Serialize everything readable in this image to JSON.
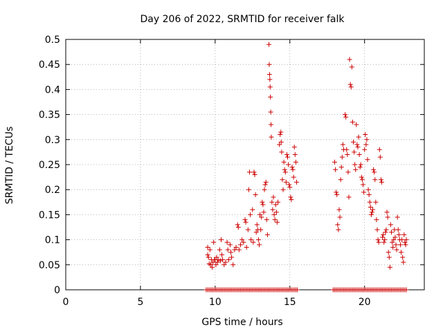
{
  "chart_data": {
    "type": "scatter",
    "title": "Day 206 of 2022, SRMTID for receiver falk",
    "xlabel": "GPS time / hours",
    "ylabel": "SRMTID / TECUs",
    "xlim": [
      0,
      24
    ],
    "ylim": [
      0,
      0.5
    ],
    "x_ticks": [
      0,
      5,
      10,
      15,
      20
    ],
    "x_tick_labels": [
      "0",
      "5",
      "10",
      "15",
      "20"
    ],
    "y_ticks": [
      0,
      0.05,
      0.1,
      0.15,
      0.2,
      0.25,
      0.3,
      0.35,
      0.4,
      0.45,
      0.5
    ],
    "y_tick_labels": [
      "0",
      "0.05",
      "0.1",
      "0.15",
      "0.2",
      "0.25",
      "0.3",
      "0.35",
      "0.4",
      "0.45",
      "0.5"
    ],
    "grid": true,
    "legend": "none",
    "marker": "+",
    "color": "#cc0000",
    "series": [
      {
        "points": [
          [
            9.5,
            0.085
          ],
          [
            9.5,
            0.07
          ],
          [
            9.55,
            0.065
          ],
          [
            9.6,
            0.052
          ],
          [
            9.65,
            0.08
          ],
          [
            9.7,
            0.05
          ],
          [
            9.75,
            0.06
          ],
          [
            9.8,
            0.045
          ],
          [
            9.85,
            0.055
          ],
          [
            9.9,
            0.095
          ],
          [
            9.95,
            0.06
          ],
          [
            10.0,
            0.06
          ],
          [
            10.05,
            0.05
          ],
          [
            10.1,
            0.065
          ],
          [
            10.15,
            0.055
          ],
          [
            10.2,
            0.06
          ],
          [
            10.3,
            0.08
          ],
          [
            10.35,
            0.058
          ],
          [
            10.4,
            0.1
          ],
          [
            10.45,
            0.07
          ],
          [
            10.5,
            0.06
          ],
          [
            10.6,
            0.05
          ],
          [
            10.7,
            0.055
          ],
          [
            10.8,
            0.095
          ],
          [
            10.85,
            0.08
          ],
          [
            10.9,
            0.06
          ],
          [
            11.0,
            0.09
          ],
          [
            11.05,
            0.075
          ],
          [
            11.1,
            0.065
          ],
          [
            11.2,
            0.05
          ],
          [
            11.3,
            0.08
          ],
          [
            11.4,
            0.085
          ],
          [
            11.5,
            0.13
          ],
          [
            11.55,
            0.125
          ],
          [
            11.6,
            0.08
          ],
          [
            11.7,
            0.09
          ],
          [
            11.8,
            0.1
          ],
          [
            11.9,
            0.095
          ],
          [
            12.0,
            0.14
          ],
          [
            12.05,
            0.135
          ],
          [
            12.1,
            0.085
          ],
          [
            12.2,
            0.12
          ],
          [
            12.25,
            0.2
          ],
          [
            12.3,
            0.235
          ],
          [
            12.35,
            0.15
          ],
          [
            12.4,
            0.1
          ],
          [
            12.5,
            0.16
          ],
          [
            12.55,
            0.095
          ],
          [
            12.6,
            0.235
          ],
          [
            12.65,
            0.23
          ],
          [
            12.7,
            0.19
          ],
          [
            12.75,
            0.115
          ],
          [
            12.8,
            0.13
          ],
          [
            12.85,
            0.12
          ],
          [
            12.9,
            0.1
          ],
          [
            12.95,
            0.09
          ],
          [
            13.0,
            0.15
          ],
          [
            13.05,
            0.12
          ],
          [
            13.1,
            0.145
          ],
          [
            13.15,
            0.175
          ],
          [
            13.2,
            0.17
          ],
          [
            13.25,
            0.155
          ],
          [
            13.3,
            0.2
          ],
          [
            13.35,
            0.21
          ],
          [
            13.4,
            0.215
          ],
          [
            13.45,
            0.14
          ],
          [
            13.5,
            0.11
          ],
          [
            13.6,
            0.49
          ],
          [
            13.62,
            0.45
          ],
          [
            13.64,
            0.43
          ],
          [
            13.66,
            0.42
          ],
          [
            13.68,
            0.405
          ],
          [
            13.7,
            0.385
          ],
          [
            13.72,
            0.355
          ],
          [
            13.74,
            0.33
          ],
          [
            13.76,
            0.305
          ],
          [
            13.8,
            0.175
          ],
          [
            13.85,
            0.16
          ],
          [
            13.9,
            0.185
          ],
          [
            13.95,
            0.15
          ],
          [
            14.0,
            0.14
          ],
          [
            14.05,
            0.17
          ],
          [
            14.1,
            0.155
          ],
          [
            14.15,
            0.135
          ],
          [
            14.2,
            0.175
          ],
          [
            14.3,
            0.29
          ],
          [
            14.35,
            0.31
          ],
          [
            14.4,
            0.315
          ],
          [
            14.42,
            0.295
          ],
          [
            14.45,
            0.275
          ],
          [
            14.5,
            0.22
          ],
          [
            14.55,
            0.2
          ],
          [
            14.6,
            0.255
          ],
          [
            14.65,
            0.24
          ],
          [
            14.7,
            0.235
          ],
          [
            14.75,
            0.215
          ],
          [
            14.8,
            0.27
          ],
          [
            14.85,
            0.265
          ],
          [
            14.9,
            0.25
          ],
          [
            14.95,
            0.21
          ],
          [
            15.0,
            0.205
          ],
          [
            15.05,
            0.185
          ],
          [
            15.1,
            0.18
          ],
          [
            15.15,
            0.245
          ],
          [
            15.2,
            0.24
          ],
          [
            15.25,
            0.225
          ],
          [
            15.3,
            0.285
          ],
          [
            15.35,
            0.27
          ],
          [
            15.4,
            0.255
          ],
          [
            15.45,
            0.215
          ],
          [
            18.0,
            0.255
          ],
          [
            18.05,
            0.24
          ],
          [
            18.1,
            0.195
          ],
          [
            18.15,
            0.19
          ],
          [
            18.2,
            0.13
          ],
          [
            18.25,
            0.12
          ],
          [
            18.3,
            0.16
          ],
          [
            18.35,
            0.145
          ],
          [
            18.4,
            0.22
          ],
          [
            18.45,
            0.245
          ],
          [
            18.5,
            0.265
          ],
          [
            18.55,
            0.29
          ],
          [
            18.6,
            0.28
          ],
          [
            18.7,
            0.35
          ],
          [
            18.75,
            0.345
          ],
          [
            18.8,
            0.28
          ],
          [
            18.85,
            0.27
          ],
          [
            18.9,
            0.235
          ],
          [
            18.95,
            0.185
          ],
          [
            19.0,
            0.46
          ],
          [
            19.05,
            0.41
          ],
          [
            19.1,
            0.405
          ],
          [
            19.15,
            0.445
          ],
          [
            19.2,
            0.335
          ],
          [
            19.25,
            0.295
          ],
          [
            19.3,
            0.275
          ],
          [
            19.35,
            0.25
          ],
          [
            19.4,
            0.24
          ],
          [
            19.45,
            0.33
          ],
          [
            19.5,
            0.29
          ],
          [
            19.55,
            0.285
          ],
          [
            19.6,
            0.305
          ],
          [
            19.65,
            0.27
          ],
          [
            19.7,
            0.245
          ],
          [
            19.75,
            0.25
          ],
          [
            19.8,
            0.225
          ],
          [
            19.85,
            0.22
          ],
          [
            19.9,
            0.21
          ],
          [
            19.95,
            0.195
          ],
          [
            20.0,
            0.28
          ],
          [
            20.05,
            0.31
          ],
          [
            20.1,
            0.29
          ],
          [
            20.15,
            0.3
          ],
          [
            20.2,
            0.26
          ],
          [
            20.25,
            0.2
          ],
          [
            20.3,
            0.19
          ],
          [
            20.35,
            0.175
          ],
          [
            20.4,
            0.165
          ],
          [
            20.45,
            0.15
          ],
          [
            20.5,
            0.155
          ],
          [
            20.55,
            0.16
          ],
          [
            20.6,
            0.24
          ],
          [
            20.65,
            0.235
          ],
          [
            20.7,
            0.22
          ],
          [
            20.75,
            0.175
          ],
          [
            20.8,
            0.14
          ],
          [
            20.85,
            0.12
          ],
          [
            20.9,
            0.1
          ],
          [
            20.95,
            0.095
          ],
          [
            21.0,
            0.28
          ],
          [
            21.05,
            0.265
          ],
          [
            21.1,
            0.22
          ],
          [
            21.15,
            0.215
          ],
          [
            21.2,
            0.105
          ],
          [
            21.25,
            0.11
          ],
          [
            21.3,
            0.095
          ],
          [
            21.35,
            0.1
          ],
          [
            21.4,
            0.115
          ],
          [
            21.45,
            0.12
          ],
          [
            21.5,
            0.155
          ],
          [
            21.55,
            0.145
          ],
          [
            21.6,
            0.075
          ],
          [
            21.65,
            0.065
          ],
          [
            21.7,
            0.045
          ],
          [
            21.75,
            0.13
          ],
          [
            21.8,
            0.115
          ],
          [
            21.85,
            0.095
          ],
          [
            21.9,
            0.085
          ],
          [
            21.95,
            0.1
          ],
          [
            22.0,
            0.12
          ],
          [
            22.05,
            0.105
          ],
          [
            22.1,
            0.09
          ],
          [
            22.15,
            0.08
          ],
          [
            22.2,
            0.145
          ],
          [
            22.25,
            0.12
          ],
          [
            22.3,
            0.11
          ],
          [
            22.35,
            0.1
          ],
          [
            22.4,
            0.09
          ],
          [
            22.45,
            0.075
          ],
          [
            22.5,
            0.1
          ],
          [
            22.55,
            0.065
          ],
          [
            22.6,
            0.055
          ],
          [
            22.65,
            0.11
          ],
          [
            22.7,
            0.095
          ],
          [
            22.75,
            0.09
          ],
          [
            22.8,
            0.1
          ]
        ]
      },
      {
        "zero_intervals": [
          [
            9.4,
            15.5
          ],
          [
            17.9,
            22.8
          ]
        ],
        "zero_step": 0.1
      }
    ]
  }
}
